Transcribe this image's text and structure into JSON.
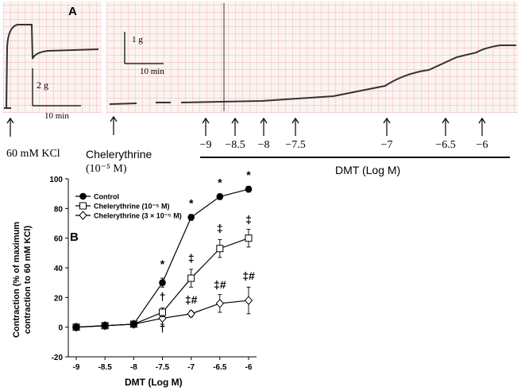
{
  "panel_a": {
    "label": "A",
    "scale_left": {
      "y": "2 g",
      "x": "10 min"
    },
    "scale_right": {
      "y": "1 g",
      "x": "10 min"
    },
    "kcl_label": "60 mM KCl",
    "chel_label": "Chelerythrine",
    "chel_conc": "(10⁻⁵ M)",
    "dmt_axis_label": "DMT (Log M)",
    "doses": [
      "−9",
      "−8.5",
      "−8",
      "−7.5",
      "−7",
      "−6.5",
      "−6"
    ]
  },
  "chart_data": {
    "type": "line",
    "panel_label": "B",
    "title": "",
    "xlabel": "DMT (Log M)",
    "ylabel_line1": "Contraction (% of maximum",
    "ylabel_line2": "contraction to 60 mM KCl)",
    "x": [
      -9,
      -8.5,
      -8,
      -7.5,
      -7,
      -6.5,
      -6
    ],
    "x_tick_labels": [
      "-9",
      "-8.5",
      "-8",
      "-7.5",
      "-7",
      "-6.5",
      "-6"
    ],
    "ylim": [
      -20,
      100
    ],
    "y_ticks": [
      -20,
      0,
      20,
      40,
      60,
      80,
      100
    ],
    "legend": [
      "Control",
      "Chelerythrine (10⁻⁵ M)",
      "Chelerythrine (3 × 10⁻⁵ M)"
    ],
    "series": [
      {
        "name": "Control",
        "marker": "circle",
        "values": [
          0,
          1,
          2,
          30,
          74,
          88,
          93
        ],
        "errors": [
          1,
          1,
          1,
          3,
          2,
          2,
          2
        ]
      },
      {
        "name": "Chelerythrine (10⁻⁵ M)",
        "marker": "square",
        "values": [
          0,
          1,
          2,
          10,
          33,
          53,
          60
        ],
        "errors": [
          1,
          1,
          1,
          3,
          6,
          6,
          6
        ]
      },
      {
        "name": "Chelerythrine (3 × 10⁻⁵ M)",
        "marker": "diamond",
        "values": [
          0,
          1,
          2,
          6,
          9,
          16,
          18
        ],
        "errors": [
          1,
          1,
          1,
          4,
          2,
          6,
          9
        ]
      }
    ],
    "annotations": [
      {
        "text": "*",
        "x": -7.5,
        "y": 40
      },
      {
        "text": "*",
        "x": -7,
        "y": 81
      },
      {
        "text": "*",
        "x": -6.5,
        "y": 95
      },
      {
        "text": "*",
        "x": -6,
        "y": 100
      },
      {
        "text": "‡",
        "x": -7,
        "y": 44
      },
      {
        "text": "‡",
        "x": -6.5,
        "y": 64
      },
      {
        "text": "‡",
        "x": -6,
        "y": 70
      },
      {
        "text": "†",
        "x": -7.5,
        "y": 18
      },
      {
        "text": "†",
        "x": -7.5,
        "y": -3
      },
      {
        "text": "‡#",
        "x": -7,
        "y": 16
      },
      {
        "text": "‡#",
        "x": -6.5,
        "y": 26
      },
      {
        "text": "‡#",
        "x": -6,
        "y": 32
      }
    ]
  }
}
